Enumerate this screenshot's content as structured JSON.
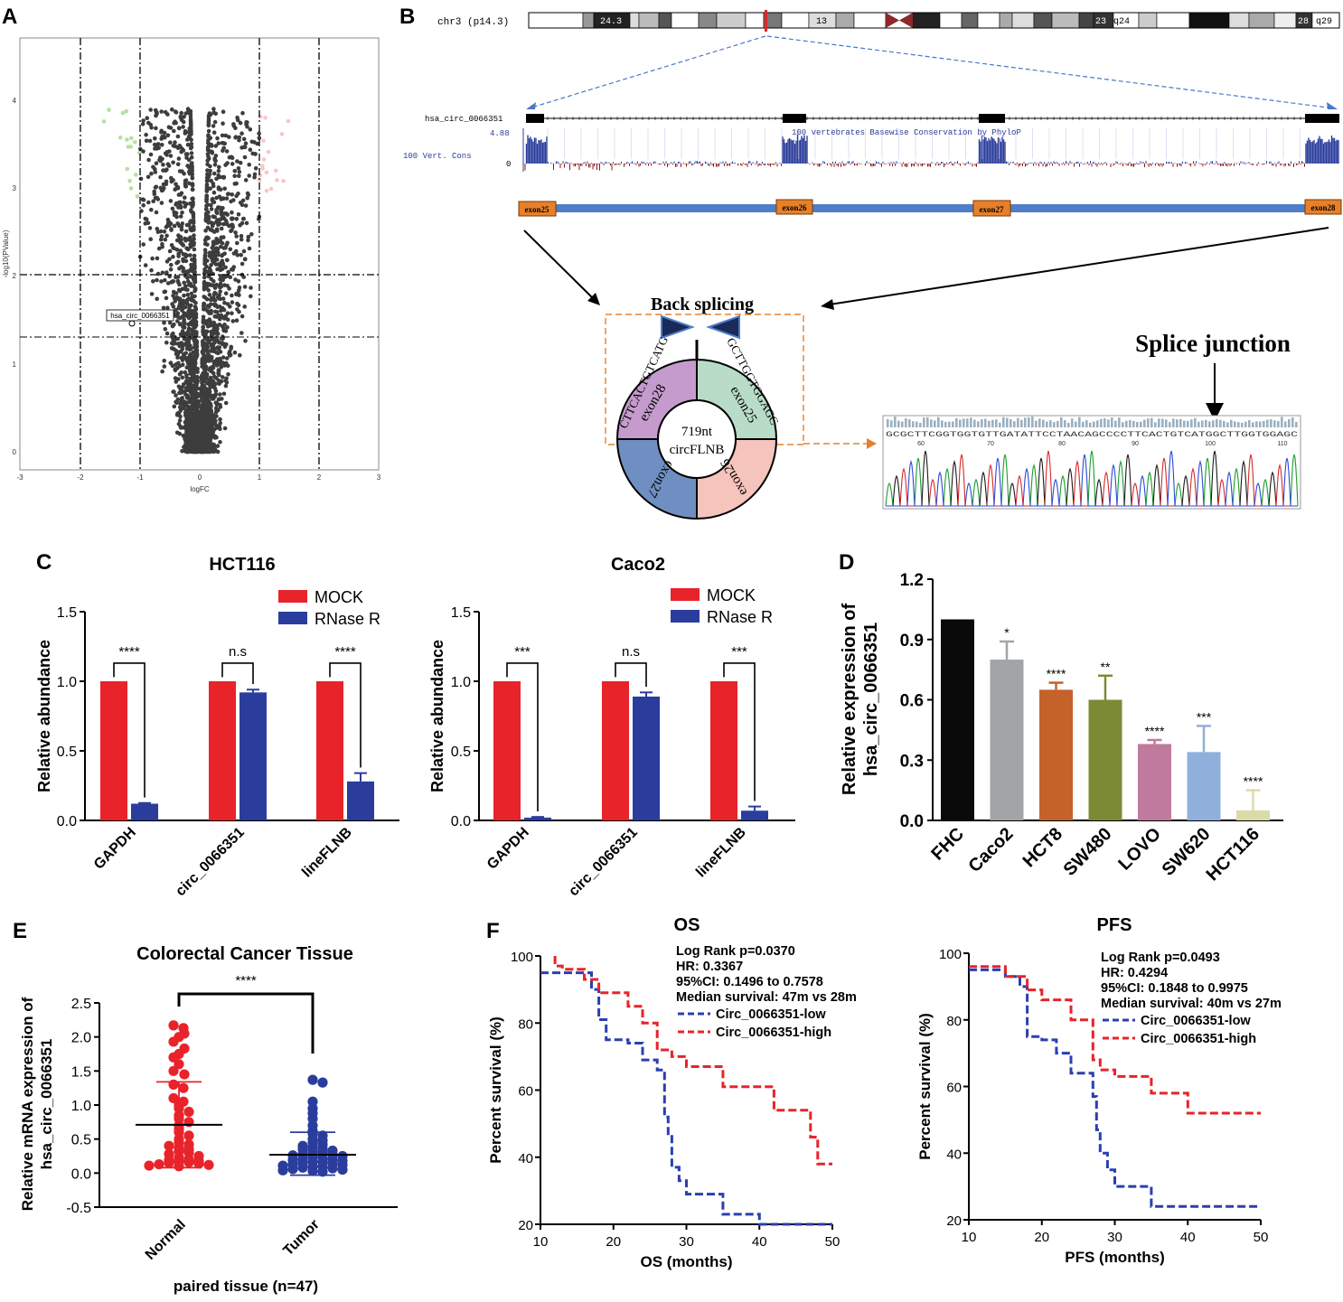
{
  "colors": {
    "red": "#e8232a",
    "blue": "#2b3d9c",
    "dashRed": "#e8232a",
    "dashBlue": "#2b3fb0"
  },
  "panels": {
    "A": "A",
    "B": "B",
    "C": "C",
    "D": "D",
    "E": "E",
    "F": "F"
  },
  "panelA": {
    "xlabel": "logFC",
    "ylabel": "-log10(PValue)",
    "xticks": [
      "-3",
      "-2",
      "-1",
      "0",
      "1",
      "2",
      "3"
    ],
    "yticks": [
      "0",
      "1",
      "2",
      "3",
      "4"
    ],
    "annotation": "hsa_circ_0066351"
  },
  "panelB": {
    "chrom": "chr3 (p14.3)",
    "bands": [
      "24.3",
      "13",
      "23",
      "q24",
      "28",
      "q29"
    ],
    "track_name": "hsa_circ_0066351",
    "cons_max": "4.88",
    "cons_zero": "0",
    "cons_label": "100 Vert. Cons",
    "cons_title": "100 vertebrates Basewise Conservation by PhyloP",
    "exons": [
      "exon25",
      "exon26",
      "exon27",
      "exon28"
    ],
    "back_splicing": "Back splicing",
    "ring_labels": [
      "exon28",
      "exon25",
      "exon26",
      "exon27"
    ],
    "seq_left": "CTTCACTGTCATG",
    "seq_right": "GCTTGGTGGAGC",
    "ring_center_1": "719nt",
    "ring_center_2": "circFLNB",
    "splice_junction": "Splice junction",
    "chrom_seq": "GCGCTTCGGTGGTGTTGATATTCCTAACAGCCCCTTCACTGTCATGGCTTGGTGGAGC",
    "chrom_ticks": [
      "60",
      "70",
      "80",
      "90",
      "100",
      "110"
    ]
  },
  "chart_data": [
    {
      "id": "C1",
      "type": "bar",
      "title": "HCT116",
      "ylabel": "Relative abundance",
      "ylim": [
        0,
        1.5
      ],
      "yticks": [
        "0.0",
        "0.5",
        "1.0",
        "1.5"
      ],
      "categories": [
        "GAPDH",
        "circ_0066351",
        "lineFLNB"
      ],
      "series": [
        {
          "name": "MOCK",
          "values": [
            1.0,
            1.0,
            1.0
          ]
        },
        {
          "name": "RNase R",
          "values": [
            0.12,
            0.92,
            0.28
          ],
          "errors": [
            0.005,
            0.02,
            0.06
          ]
        }
      ],
      "significance": [
        "****",
        "n.s",
        "****"
      ]
    },
    {
      "id": "C2",
      "type": "bar",
      "title": "Caco2",
      "ylabel": "Relative abundance",
      "ylim": [
        0,
        1.5
      ],
      "yticks": [
        "0.0",
        "0.5",
        "1.0",
        "1.5"
      ],
      "categories": [
        "GAPDH",
        "circ_0066351",
        "lineFLNB"
      ],
      "series": [
        {
          "name": "MOCK",
          "values": [
            1.0,
            1.0,
            1.0
          ]
        },
        {
          "name": "RNase R",
          "values": [
            0.02,
            0.89,
            0.07
          ],
          "errors": [
            0.005,
            0.03,
            0.03
          ]
        }
      ],
      "significance": [
        "***",
        "n.s",
        "***"
      ]
    },
    {
      "id": "D",
      "type": "bar",
      "title": "",
      "ylabel": "Relative expression of hsa_circ_0066351",
      "ylim": [
        0,
        1.2
      ],
      "yticks": [
        "0.0",
        "0.3",
        "0.6",
        "0.9",
        "1.2"
      ],
      "categories": [
        "FHC",
        "Caco2",
        "HCT8",
        "SW480",
        "LOVO",
        "SW620",
        "HCT116"
      ],
      "values": [
        1.0,
        0.8,
        0.65,
        0.6,
        0.38,
        0.34,
        0.05
      ],
      "errors": [
        0,
        0.09,
        0.035,
        0.12,
        0.02,
        0.13,
        0.1
      ],
      "colors": [
        "#0a0a0a",
        "#a2a4a7",
        "#c4622a",
        "#7d8a35",
        "#c07a9e",
        "#8fb0da",
        "#dcdba8"
      ],
      "significance": [
        "",
        "*",
        "****",
        "**",
        "****",
        "***",
        "****"
      ]
    },
    {
      "id": "E",
      "type": "scatter",
      "title": "Colorectal Cancer Tissue",
      "ylabel": "Relative mRNA expression of hsa_circ_0066351",
      "xlabel": "paired tissue (n=47)",
      "ylim": [
        -0.5,
        2.5
      ],
      "yticks": [
        "-0.5",
        "0.0",
        "0.5",
        "1.0",
        "1.5",
        "2.0",
        "2.5"
      ],
      "categories": [
        "Normal",
        "Tumor"
      ],
      "groups": [
        {
          "name": "Normal",
          "mean": 0.71,
          "sd_low": 0.08,
          "sd_high": 1.34,
          "values": [
            2.17,
            2.13,
            2.05,
            2.0,
            1.93,
            1.83,
            1.75,
            1.7,
            1.6,
            1.5,
            1.45,
            1.3,
            1.25,
            1.1,
            1.05,
            1.0,
            0.95,
            0.9,
            0.85,
            0.8,
            0.75,
            0.7,
            0.65,
            0.6,
            0.55,
            0.5,
            0.45,
            0.42,
            0.4,
            0.37,
            0.35,
            0.32,
            0.3,
            0.28,
            0.25,
            0.23,
            0.2,
            0.19,
            0.18,
            0.17,
            0.16,
            0.15,
            0.14,
            0.13,
            0.12,
            0.11,
            0.1
          ]
        },
        {
          "name": "Tumor",
          "mean": 0.27,
          "sd_low": -0.03,
          "sd_high": 0.6,
          "values": [
            1.37,
            1.33,
            1.05,
            0.95,
            0.88,
            0.8,
            0.7,
            0.62,
            0.58,
            0.55,
            0.5,
            0.48,
            0.45,
            0.42,
            0.4,
            0.38,
            0.36,
            0.35,
            0.33,
            0.32,
            0.3,
            0.28,
            0.27,
            0.26,
            0.25,
            0.24,
            0.22,
            0.21,
            0.2,
            0.19,
            0.18,
            0.17,
            0.16,
            0.15,
            0.14,
            0.13,
            0.12,
            0.11,
            0.1,
            0.09,
            0.08,
            0.07,
            0.06,
            0.05,
            0.04,
            0.03,
            0.02
          ]
        }
      ],
      "significance": "****"
    },
    {
      "id": "F1",
      "type": "line",
      "title": "OS",
      "xlabel": "OS (months)",
      "ylabel": "Percent survival (%)",
      "xlim": [
        10,
        50
      ],
      "ylim": [
        20,
        100
      ],
      "xticks": [
        "10",
        "20",
        "30",
        "40",
        "50"
      ],
      "yticks": [
        "20",
        "40",
        "60",
        "80",
        "100"
      ],
      "stats": [
        "Log Rank p=0.0370",
        "HR: 0.3367",
        "95%CI: 0.1496 to 0.7578",
        "Median survival: 47m vs 28m"
      ],
      "series": [
        {
          "name": "Circ_0066351-low",
          "color": "#2b3fb0",
          "x": [
            10,
            17,
            17,
            18,
            18,
            19,
            19,
            22,
            22,
            24,
            24,
            26,
            26,
            27,
            27,
            27.5,
            27.5,
            28,
            28,
            29,
            29,
            30,
            30,
            35,
            35,
            40,
            40,
            50
          ],
          "y": [
            95,
            95,
            90,
            90,
            81,
            81,
            75,
            75,
            74,
            74,
            69,
            69,
            66,
            66,
            52,
            52,
            47,
            47,
            37,
            37,
            33,
            33,
            29,
            29,
            23,
            23,
            20,
            20
          ]
        },
        {
          "name": "Circ_0066351-high",
          "color": "#e8232a",
          "x": [
            12,
            12,
            13,
            13,
            16,
            16,
            18,
            18,
            22,
            22,
            24,
            24,
            26,
            26,
            28,
            28,
            30,
            30,
            35,
            35,
            42,
            42,
            47,
            47,
            48,
            48,
            50
          ],
          "y": [
            100,
            97,
            97,
            96,
            96,
            93,
            93,
            89,
            89,
            85,
            85,
            80,
            80,
            72,
            72,
            70,
            70,
            67,
            67,
            61,
            61,
            54,
            54,
            46,
            46,
            38,
            38
          ]
        }
      ]
    },
    {
      "id": "F2",
      "type": "line",
      "title": "PFS",
      "xlabel": "PFS (months)",
      "ylabel": "Percent survival (%)",
      "xlim": [
        10,
        50
      ],
      "ylim": [
        20,
        100
      ],
      "xticks": [
        "10",
        "20",
        "30",
        "40",
        "50"
      ],
      "yticks": [
        "20",
        "40",
        "60",
        "80",
        "100"
      ],
      "stats": [
        "Log Rank p=0.0493",
        "HR: 0.4294",
        "95%CI: 0.1848 to 0.9975",
        "Median survival: 40m vs 27m"
      ],
      "series": [
        {
          "name": "Circ_0066351-low",
          "color": "#2b3fb0",
          "x": [
            10,
            15,
            15,
            17,
            17,
            18,
            18,
            20,
            20,
            22,
            22,
            24,
            24,
            27,
            27,
            27.5,
            27.5,
            28,
            28,
            29,
            29,
            30,
            30,
            35,
            35,
            50
          ],
          "y": [
            95,
            95,
            93,
            93,
            90,
            90,
            75,
            75,
            74,
            74,
            70,
            70,
            64,
            64,
            57,
            57,
            47,
            47,
            40,
            40,
            35,
            35,
            30,
            30,
            24,
            24
          ]
        },
        {
          "name": "Circ_0066351-high",
          "color": "#e8232a",
          "x": [
            10,
            15,
            15,
            18,
            18,
            20,
            20,
            24,
            24,
            27,
            27,
            28,
            28,
            30,
            30,
            35,
            35,
            40,
            40,
            50
          ],
          "y": [
            96,
            96,
            93,
            93,
            89,
            89,
            86,
            86,
            80,
            80,
            68,
            68,
            65,
            65,
            63,
            63,
            58,
            58,
            52,
            52
          ]
        }
      ]
    }
  ]
}
